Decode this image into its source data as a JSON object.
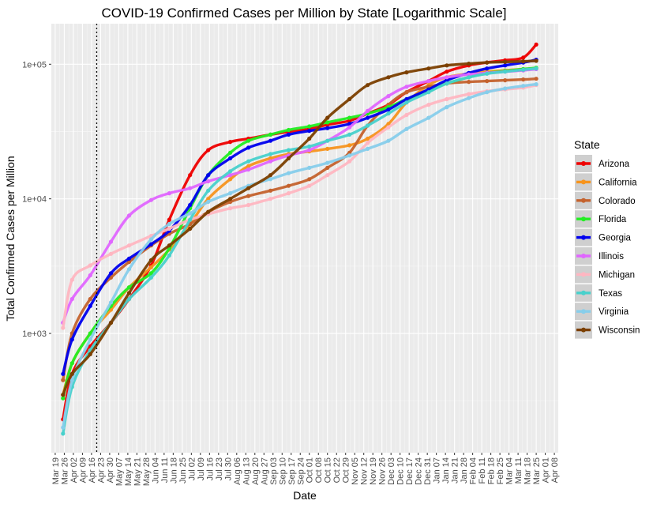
{
  "chart_data": {
    "type": "line",
    "title": "COVID-19 Confirmed Cases per Million by State [Logarithmic Scale]",
    "xlabel": "Date",
    "ylabel": "Total Confirmed Cases per Million",
    "y_scale": "log10",
    "ylim": [
      130,
      200000
    ],
    "xlim": [
      "2020-03-16",
      "2021-04-11"
    ],
    "y_ticks": [
      1000,
      10000,
      100000
    ],
    "y_tick_labels": [
      "1e+03",
      "1e+04",
      "1e+05"
    ],
    "x_ticks": [
      "2020-03-19",
      "2020-03-26",
      "2020-04-02",
      "2020-04-09",
      "2020-04-16",
      "2020-04-23",
      "2020-04-30",
      "2020-05-07",
      "2020-05-14",
      "2020-05-21",
      "2020-05-28",
      "2020-06-04",
      "2020-06-11",
      "2020-06-18",
      "2020-06-25",
      "2020-07-02",
      "2020-07-09",
      "2020-07-16",
      "2020-07-23",
      "2020-07-30",
      "2020-08-06",
      "2020-08-13",
      "2020-08-20",
      "2020-08-27",
      "2020-09-03",
      "2020-09-10",
      "2020-09-17",
      "2020-09-24",
      "2020-10-01",
      "2020-10-08",
      "2020-10-15",
      "2020-10-22",
      "2020-10-29",
      "2020-11-05",
      "2020-11-12",
      "2020-11-19",
      "2020-11-26",
      "2020-12-03",
      "2020-12-10",
      "2020-12-17",
      "2020-12-24",
      "2020-12-31",
      "2021-01-07",
      "2021-01-14",
      "2021-01-21",
      "2021-01-28",
      "2021-02-04",
      "2021-02-11",
      "2021-02-18",
      "2021-02-25",
      "2021-03-04",
      "2021-03-11",
      "2021-03-18",
      "2021-03-25",
      "2021-04-01",
      "2021-04-08"
    ],
    "x_tick_labels": [
      "Mar 19",
      "Mar 26",
      "Apr 02",
      "Apr 09",
      "Apr 16",
      "Apr 23",
      "Apr 30",
      "May 07",
      "May 14",
      "May 21",
      "May 28",
      "Jun 04",
      "Jun 11",
      "Jun 18",
      "Jun 25",
      "Jul 02",
      "Jul 09",
      "Jul 16",
      "Jul 23",
      "Jul 30",
      "Aug 06",
      "Aug 13",
      "Aug 20",
      "Aug 27",
      "Sep 03",
      "Sep 10",
      "Sep 17",
      "Sep 24",
      "Oct 01",
      "Oct 08",
      "Oct 15",
      "Oct 22",
      "Oct 29",
      "Nov 05",
      "Nov 12",
      "Nov 19",
      "Nov 26",
      "Dec 03",
      "Dec 10",
      "Dec 17",
      "Dec 24",
      "Dec 31",
      "Jan 07",
      "Jan 14",
      "Jan 21",
      "Jan 28",
      "Feb 04",
      "Feb 11",
      "Feb 18",
      "Feb 25",
      "Mar 04",
      "Mar 11",
      "Mar 18",
      "Mar 25",
      "Apr 01",
      "Apr 08"
    ],
    "vline": {
      "x": "2020-04-20",
      "style": "dotted"
    },
    "grid": true,
    "legend": {
      "title": "State",
      "placement": "right"
    },
    "series": [
      {
        "name": "Arizona",
        "color": "#ee0000",
        "x": [
          "2020-03-25",
          "2020-04-01",
          "2020-04-15",
          "2020-05-01",
          "2020-05-15",
          "2020-06-01",
          "2020-06-15",
          "2020-07-01",
          "2020-07-15",
          "2020-08-01",
          "2020-08-15",
          "2020-09-01",
          "2020-09-15",
          "2020-10-01",
          "2020-10-15",
          "2020-11-01",
          "2020-11-15",
          "2020-12-01",
          "2020-12-15",
          "2021-01-01",
          "2021-01-15",
          "2021-02-01",
          "2021-02-15",
          "2021-03-01",
          "2021-03-15",
          "2021-03-25"
        ],
        "y": [
          230,
          500,
          800,
          1200,
          1800,
          3200,
          7000,
          15000,
          23000,
          26500,
          28000,
          30000,
          31500,
          33000,
          35500,
          38000,
          43000,
          50000,
          62000,
          75000,
          88000,
          98000,
          103000,
          107000,
          112000,
          140000
        ]
      },
      {
        "name": "California",
        "color": "#f7941d",
        "x": [
          "2020-03-25",
          "2020-04-01",
          "2020-04-15",
          "2020-05-01",
          "2020-05-15",
          "2020-06-01",
          "2020-06-15",
          "2020-07-01",
          "2020-07-15",
          "2020-08-01",
          "2020-08-15",
          "2020-09-01",
          "2020-09-15",
          "2020-10-01",
          "2020-10-15",
          "2020-11-01",
          "2020-11-15",
          "2020-12-01",
          "2020-12-15",
          "2021-01-01",
          "2021-01-15",
          "2021-02-01",
          "2021-02-15",
          "2021-03-01",
          "2021-03-15",
          "2021-03-25"
        ],
        "y": [
          350,
          600,
          1000,
          1500,
          2200,
          3100,
          4200,
          6500,
          10000,
          14000,
          17500,
          20000,
          21500,
          22500,
          23500,
          25000,
          28000,
          36000,
          52000,
          70000,
          80000,
          85000,
          88000,
          90000,
          92000,
          93000
        ]
      },
      {
        "name": "Colorado",
        "color": "#c4622d",
        "x": [
          "2020-03-25",
          "2020-04-01",
          "2020-04-15",
          "2020-05-01",
          "2020-05-15",
          "2020-06-01",
          "2020-06-15",
          "2020-07-01",
          "2020-07-15",
          "2020-08-01",
          "2020-08-15",
          "2020-09-01",
          "2020-09-15",
          "2020-10-01",
          "2020-10-15",
          "2020-11-01",
          "2020-11-15",
          "2020-12-01",
          "2020-12-15",
          "2021-01-01",
          "2021-01-15",
          "2021-02-01",
          "2021-02-15",
          "2021-03-01",
          "2021-03-15",
          "2021-03-25"
        ],
        "y": [
          450,
          1000,
          1800,
          2600,
          3400,
          4500,
          5500,
          6500,
          8000,
          9500,
          10500,
          11500,
          12500,
          14000,
          17000,
          22000,
          35000,
          50000,
          62000,
          68000,
          72000,
          74000,
          75000,
          76000,
          77000,
          78000
        ]
      },
      {
        "name": "Florida",
        "color": "#22ee22",
        "x": [
          "2020-03-25",
          "2020-04-01",
          "2020-04-15",
          "2020-05-01",
          "2020-05-15",
          "2020-06-01",
          "2020-06-15",
          "2020-07-01",
          "2020-07-15",
          "2020-08-01",
          "2020-08-15",
          "2020-09-01",
          "2020-09-15",
          "2020-10-01",
          "2020-10-15",
          "2020-11-01",
          "2020-11-15",
          "2020-12-01",
          "2020-12-15",
          "2021-01-01",
          "2021-01-15",
          "2021-02-01",
          "2021-02-15",
          "2021-03-01",
          "2021-03-15",
          "2021-03-25"
        ],
        "y": [
          330,
          600,
          1000,
          1600,
          2200,
          2800,
          4300,
          8500,
          15000,
          22000,
          27000,
          30000,
          32500,
          34500,
          37000,
          40000,
          43000,
          48000,
          55000,
          63000,
          72000,
          80000,
          86000,
          89000,
          92000,
          94000
        ]
      },
      {
        "name": "Georgia",
        "color": "#0000ee",
        "x": [
          "2020-03-25",
          "2020-04-01",
          "2020-04-15",
          "2020-05-01",
          "2020-05-15",
          "2020-06-01",
          "2020-06-15",
          "2020-07-01",
          "2020-07-15",
          "2020-08-01",
          "2020-08-15",
          "2020-09-01",
          "2020-09-15",
          "2020-10-01",
          "2020-10-15",
          "2020-11-01",
          "2020-11-15",
          "2020-12-01",
          "2020-12-15",
          "2021-01-01",
          "2021-01-15",
          "2021-02-01",
          "2021-02-15",
          "2021-03-01",
          "2021-03-15",
          "2021-03-25"
        ],
        "y": [
          500,
          900,
          1600,
          2800,
          3600,
          4600,
          5800,
          9000,
          15000,
          20000,
          24000,
          27000,
          30000,
          32000,
          33500,
          36000,
          40000,
          46000,
          55000,
          65000,
          76000,
          86000,
          93000,
          98000,
          103000,
          108000
        ]
      },
      {
        "name": "Illinois",
        "color": "#e066ff",
        "x": [
          "2020-03-25",
          "2020-04-01",
          "2020-04-15",
          "2020-05-01",
          "2020-05-15",
          "2020-06-01",
          "2020-06-15",
          "2020-07-01",
          "2020-07-15",
          "2020-08-01",
          "2020-08-15",
          "2020-09-01",
          "2020-09-15",
          "2020-10-01",
          "2020-10-15",
          "2020-11-01",
          "2020-11-15",
          "2020-12-01",
          "2020-12-15",
          "2021-01-01",
          "2021-01-15",
          "2021-02-01",
          "2021-02-15",
          "2021-03-01",
          "2021-03-15",
          "2021-03-25"
        ],
        "y": [
          1200,
          1800,
          2700,
          4800,
          7500,
          9800,
          11000,
          12000,
          13500,
          15000,
          16500,
          19000,
          21000,
          23000,
          27000,
          34000,
          45000,
          58000,
          68000,
          75000,
          80000,
          84000,
          86000,
          88000,
          90000,
          92000
        ]
      },
      {
        "name": "Michigan",
        "color": "#ffb6c1",
        "x": [
          "2020-03-25",
          "2020-04-01",
          "2020-04-15",
          "2020-05-01",
          "2020-05-15",
          "2020-06-01",
          "2020-06-15",
          "2020-07-01",
          "2020-07-15",
          "2020-08-01",
          "2020-08-15",
          "2020-09-01",
          "2020-09-15",
          "2020-10-01",
          "2020-10-15",
          "2020-11-01",
          "2020-11-15",
          "2020-12-01",
          "2020-12-15",
          "2021-01-01",
          "2021-01-15",
          "2021-02-01",
          "2021-02-15",
          "2021-03-01",
          "2021-03-15",
          "2021-03-25"
        ],
        "y": [
          1100,
          2500,
          3200,
          3900,
          4500,
          5300,
          6000,
          7000,
          7700,
          8500,
          9000,
          10000,
          11000,
          12500,
          15000,
          19000,
          26000,
          34000,
          42000,
          50000,
          55000,
          60000,
          63000,
          65000,
          67000,
          70000
        ]
      },
      {
        "name": "Texas",
        "color": "#48d1cc",
        "x": [
          "2020-03-25",
          "2020-04-01",
          "2020-04-15",
          "2020-05-01",
          "2020-05-15",
          "2020-06-01",
          "2020-06-15",
          "2020-07-01",
          "2020-07-15",
          "2020-08-01",
          "2020-08-15",
          "2020-09-01",
          "2020-09-15",
          "2020-10-01",
          "2020-10-15",
          "2020-11-01",
          "2020-11-15",
          "2020-12-01",
          "2020-12-15",
          "2021-01-01",
          "2021-01-15",
          "2021-02-01",
          "2021-02-15",
          "2021-03-01",
          "2021-03-15",
          "2021-03-25"
        ],
        "y": [
          180,
          400,
          750,
          1200,
          1800,
          2600,
          3800,
          7000,
          11500,
          16000,
          19000,
          21500,
          23000,
          24500,
          27000,
          30000,
          35000,
          43000,
          52000,
          62000,
          72000,
          80000,
          85000,
          88000,
          91000,
          93000
        ]
      },
      {
        "name": "Virginia",
        "color": "#87ceeb",
        "x": [
          "2020-03-25",
          "2020-04-01",
          "2020-04-15",
          "2020-05-01",
          "2020-05-15",
          "2020-06-01",
          "2020-06-15",
          "2020-07-01",
          "2020-07-15",
          "2020-08-01",
          "2020-08-15",
          "2020-09-01",
          "2020-09-15",
          "2020-10-01",
          "2020-10-15",
          "2020-11-01",
          "2020-11-15",
          "2020-12-01",
          "2020-12-15",
          "2021-01-01",
          "2021-01-15",
          "2021-02-01",
          "2021-02-15",
          "2021-03-01",
          "2021-03-15",
          "2021-03-25"
        ],
        "y": [
          200,
          450,
          900,
          1700,
          3000,
          5000,
          6500,
          7800,
          9500,
          11000,
          12500,
          14000,
          15500,
          17000,
          18500,
          21000,
          23500,
          27000,
          33000,
          40000,
          48000,
          56000,
          62000,
          66000,
          69000,
          71000
        ]
      },
      {
        "name": "Wisconsin",
        "color": "#7b3f00",
        "x": [
          "2020-03-25",
          "2020-04-01",
          "2020-04-15",
          "2020-05-01",
          "2020-05-15",
          "2020-06-01",
          "2020-06-15",
          "2020-07-01",
          "2020-07-15",
          "2020-08-01",
          "2020-08-15",
          "2020-09-01",
          "2020-09-15",
          "2020-10-01",
          "2020-10-15",
          "2020-11-01",
          "2020-11-15",
          "2020-12-01",
          "2020-12-15",
          "2021-01-01",
          "2021-01-15",
          "2021-02-01",
          "2021-02-15",
          "2021-03-01",
          "2021-03-15",
          "2021-03-25"
        ],
        "y": [
          350,
          500,
          700,
          1200,
          2000,
          3500,
          4500,
          6000,
          8000,
          10000,
          12000,
          15000,
          20000,
          28000,
          40000,
          55000,
          70000,
          80000,
          87000,
          93000,
          98000,
          101000,
          103000,
          104000,
          105000,
          106000
        ]
      }
    ]
  }
}
